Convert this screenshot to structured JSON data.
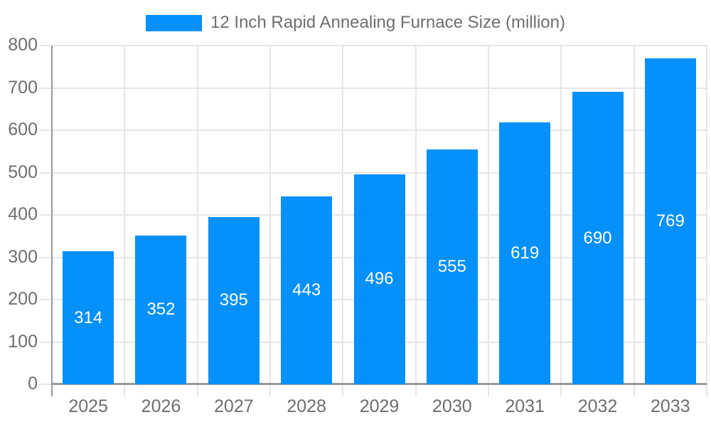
{
  "page": {
    "background": "#ffffff"
  },
  "legend": {
    "label": "12 Inch Rapid Annealing Furnace Size (million)"
  },
  "chart_data": {
    "type": "bar",
    "title": "",
    "series_name": "12 Inch Rapid Annealing Furnace Size (million)",
    "categories": [
      "2025",
      "2026",
      "2027",
      "2028",
      "2029",
      "2030",
      "2031",
      "2032",
      "2033"
    ],
    "values": [
      314,
      352,
      395,
      443,
      496,
      555,
      619,
      690,
      769
    ],
    "xlabel": "",
    "ylabel": "",
    "ylim": [
      0,
      800
    ],
    "ytick_step": 100,
    "ytick_labels": [
      "0",
      "100",
      "200",
      "300",
      "400",
      "500",
      "600",
      "700",
      "800"
    ],
    "grid": true,
    "legend_position": "top-center",
    "bar_value_labels": "inside-middle",
    "colors": {
      "bar": "#0590fa",
      "bar_label": "#ffffff",
      "axis_line": "#9a9a9a",
      "grid_line": "#e6e6e6",
      "tick_label": "#6e6e6e",
      "legend_text": "#6e6e6e",
      "background": "#ffffff"
    }
  }
}
